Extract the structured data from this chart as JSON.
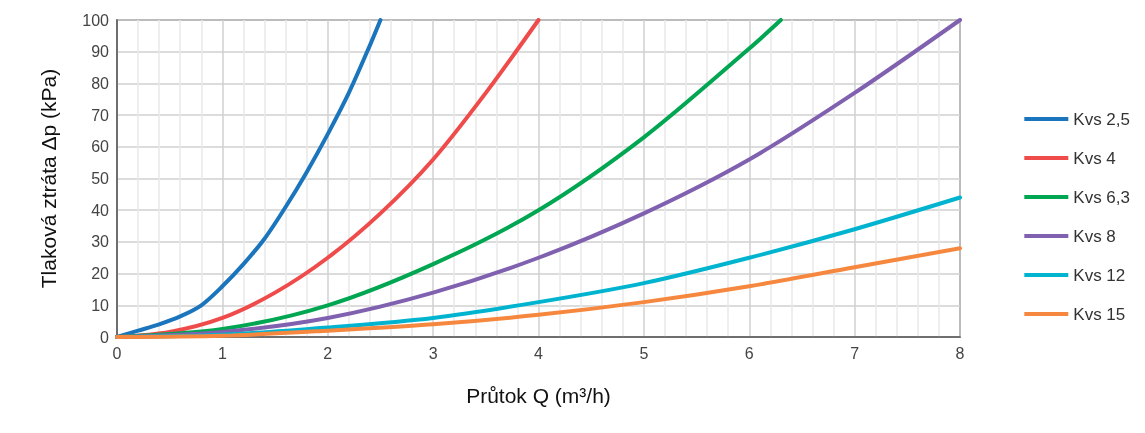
{
  "chart_data": {
    "type": "line",
    "xlabel": "Průtok Q (m³/h)",
    "ylabel": "Tlaková ztráta Δp (kPa)",
    "xlim": [
      0,
      8
    ],
    "xticks": [
      0,
      1,
      2,
      3,
      4,
      5,
      6,
      7,
      8
    ],
    "ylim": [
      0,
      100
    ],
    "yticks": [
      0,
      10,
      20,
      30,
      40,
      50,
      60,
      70,
      80,
      90,
      100
    ],
    "grid": true,
    "legend": "right",
    "marker": "none",
    "line_style": "solid",
    "series": [
      {
        "name": "Kvs 2,5",
        "color": "#1b75bc",
        "x": [
          0,
          0.2,
          0.4,
          0.6,
          0.8,
          1.0,
          1.2,
          1.4,
          1.6,
          1.8,
          2.0,
          2.2,
          2.4,
          2.5
        ],
        "values": [
          0,
          2,
          4,
          6.5,
          10,
          16,
          23,
          31,
          41,
          52,
          64,
          77,
          92,
          100
        ]
      },
      {
        "name": "Kvs 4",
        "color": "#ef4b4b",
        "x": [
          0,
          0.5,
          1,
          1.5,
          2,
          2.5,
          3,
          3.5,
          4
        ],
        "values": [
          0,
          1.6,
          6,
          14,
          25,
          39,
          56,
          77,
          100
        ]
      },
      {
        "name": "Kvs 6,3",
        "color": "#00a651",
        "x": [
          0,
          1,
          2,
          3,
          4,
          5,
          6,
          6.3
        ],
        "values": [
          0,
          2.5,
          10,
          23,
          40,
          63,
          91,
          100
        ]
      },
      {
        "name": "Kvs 8",
        "color": "#8061b0",
        "x": [
          0,
          1,
          2,
          3,
          4,
          5,
          6,
          7,
          8
        ],
        "values": [
          0,
          1.6,
          6,
          14,
          25,
          39,
          56,
          77,
          100
        ]
      },
      {
        "name": "Kvs 12",
        "color": "#00b4d0",
        "x": [
          0,
          1,
          2,
          3,
          4,
          5,
          6,
          7,
          8
        ],
        "values": [
          0,
          0.7,
          3,
          6,
          11,
          17,
          25,
          34,
          44
        ]
      },
      {
        "name": "Kvs 15",
        "color": "#f5883e",
        "x": [
          0,
          1,
          2,
          3,
          4,
          5,
          6,
          7,
          8
        ],
        "values": [
          0,
          0.4,
          2,
          4,
          7,
          11,
          16,
          22,
          28
        ]
      }
    ]
  }
}
